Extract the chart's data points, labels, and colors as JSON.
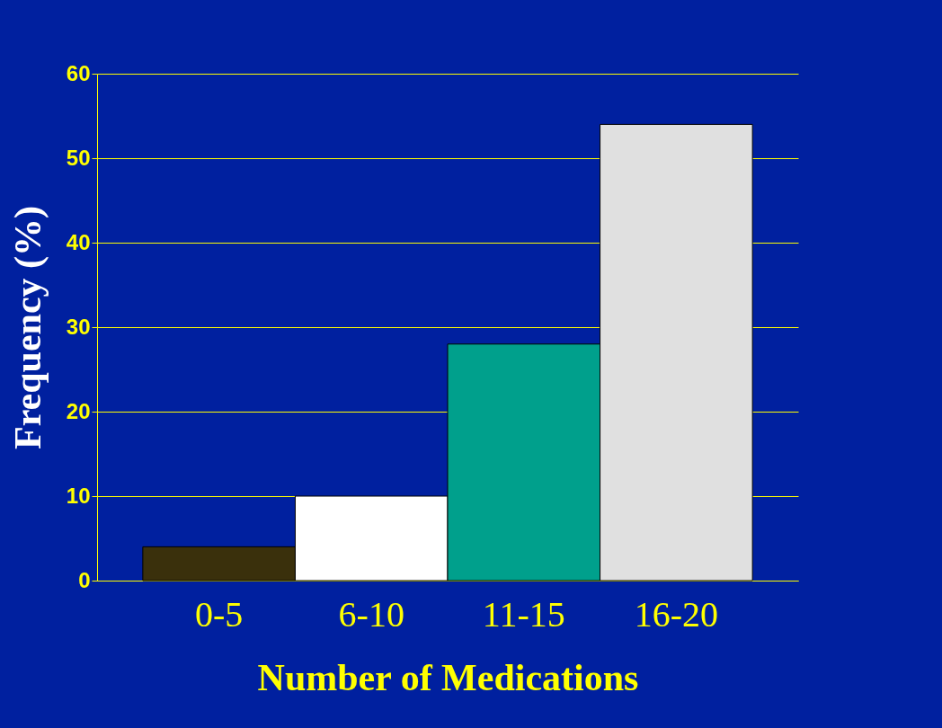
{
  "chart_data": {
    "type": "bar",
    "xlabel": "Number of Medications",
    "ylabel": "Frequency (%)",
    "categories": [
      "0-5",
      "6-10",
      "11-15",
      "16-20"
    ],
    "values": [
      4,
      10,
      28,
      54
    ],
    "colors": [
      "#3a300c",
      "#ffffff",
      "#00a08c",
      "#e0e0e0"
    ],
    "ylim": [
      0,
      60
    ],
    "yticks": [
      0,
      10,
      20,
      30,
      40,
      50,
      60
    ],
    "grid": "y"
  }
}
